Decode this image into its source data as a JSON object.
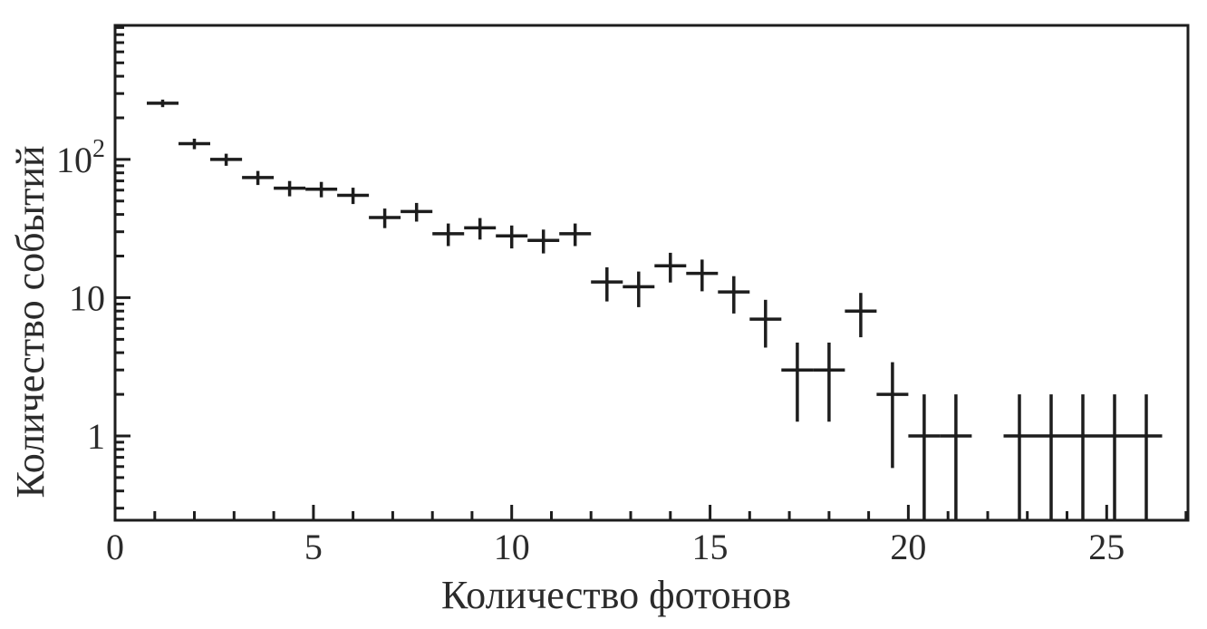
{
  "figure": {
    "background": "#ffffff",
    "line_color": "#1d1d1d",
    "text_color": "#2b2b2b"
  },
  "chart_data": {
    "type": "scatter",
    "title": "",
    "xlabel": "Количество фотонов",
    "ylabel": "Количество событий",
    "x_scale": "linear",
    "y_scale": "log",
    "xlim": [
      0,
      27.05
    ],
    "ylim": [
      0.2455,
      933
    ],
    "grid": false,
    "legend": null,
    "x_major_ticks": [
      {
        "value": 0,
        "label": "0"
      },
      {
        "value": 5,
        "label": "5"
      },
      {
        "value": 10,
        "label": "10"
      },
      {
        "value": 15,
        "label": "15"
      },
      {
        "value": 20,
        "label": "20"
      },
      {
        "value": 25,
        "label": "25"
      }
    ],
    "x_minor_tick_step": 1,
    "y_major_ticks": [
      {
        "value": 1,
        "label": "1",
        "sup": ""
      },
      {
        "value": 10,
        "label": "10",
        "sup": ""
      },
      {
        "value": 100,
        "label": "10",
        "sup": "2"
      }
    ],
    "bin_half_width": 0.4,
    "error_model": "sqrt(N), lower bar clipped at plot bottom",
    "marker_style": "cross with horizontal bin-width bar and vertical Poisson error bar",
    "points": [
      [
        1.2,
        255
      ],
      [
        2.0,
        130
      ],
      [
        2.8,
        100
      ],
      [
        3.6,
        74
      ],
      [
        4.4,
        62
      ],
      [
        5.2,
        61
      ],
      [
        6.0,
        55
      ],
      [
        6.8,
        38
      ],
      [
        7.6,
        42
      ],
      [
        8.4,
        29
      ],
      [
        9.2,
        32
      ],
      [
        10.0,
        28
      ],
      [
        10.8,
        26
      ],
      [
        11.6,
        29
      ],
      [
        12.4,
        13
      ],
      [
        13.2,
        12
      ],
      [
        14.0,
        17
      ],
      [
        14.8,
        15
      ],
      [
        15.6,
        11
      ],
      [
        16.4,
        7
      ],
      [
        17.2,
        3
      ],
      [
        18.0,
        3
      ],
      [
        18.8,
        8
      ],
      [
        19.6,
        2
      ],
      [
        20.4,
        1
      ],
      [
        21.2,
        1
      ],
      [
        22.8,
        1
      ],
      [
        23.6,
        1
      ],
      [
        24.4,
        1
      ],
      [
        25.2,
        1
      ],
      [
        26.0,
        1
      ]
    ],
    "layout": {
      "plot_left": 127,
      "plot_top": 28,
      "plot_right": 1311,
      "plot_bottom": 574,
      "frame_stroke": 3,
      "tick_stroke": 3,
      "data_stroke": 3.5,
      "major_tick_len": 17,
      "minor_tick_len": 10,
      "x_tick_label_y": 617,
      "x_tick_label_size": 40,
      "y_tick_label_x": 116,
      "y_tick_label_size": 40,
      "y_sup_size": 28,
      "y_sup_rise": 17,
      "xlabel_x": 680,
      "xlabel_y": 671,
      "xlabel_size": 44,
      "ylabel_x": 48,
      "ylabel_y": 355,
      "ylabel_size": 44
    }
  }
}
